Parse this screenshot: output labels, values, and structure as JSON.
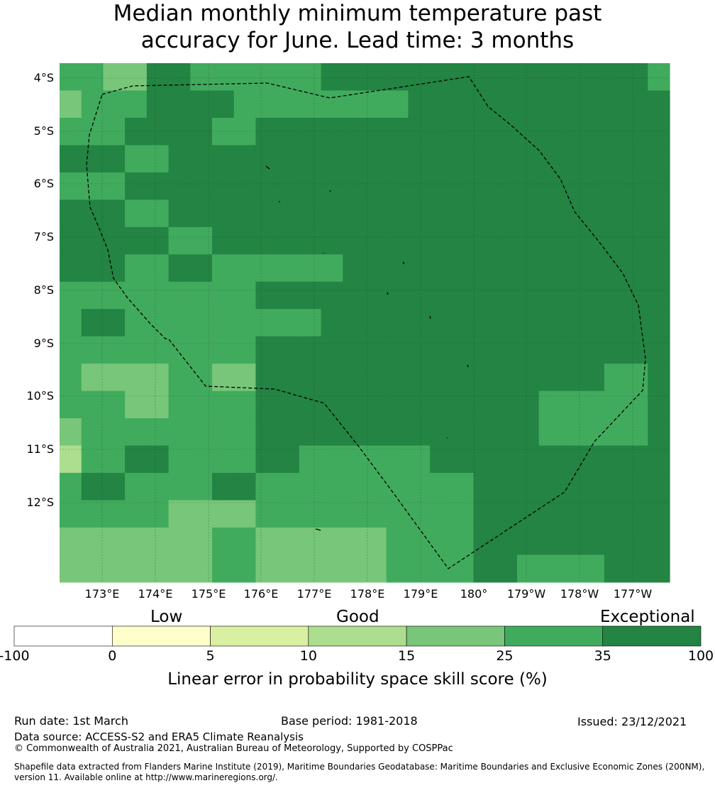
{
  "title": {
    "line1": "Median monthly minimum temperature past",
    "line2": "accuracy for June. Lead time: 3 months"
  },
  "map": {
    "lat_labels": [
      "4°S",
      "5°S",
      "6°S",
      "7°S",
      "8°S",
      "9°S",
      "10°S",
      "11°S",
      "12°S"
    ],
    "lon_labels": [
      "173°E",
      "174°E",
      "175°E",
      "176°E",
      "177°E",
      "178°E",
      "179°E",
      "180°",
      "179°W",
      "178°W",
      "177°W"
    ],
    "palette": [
      "#ffffff",
      "#ffffcc",
      "#d9f0a3",
      "#addd8e",
      "#78c679",
      "#41ab5d",
      "#238443"
    ],
    "grid": [
      [
        5,
        5,
        4,
        4,
        6,
        6,
        5,
        5,
        5,
        5,
        5,
        5,
        6,
        6,
        6,
        6,
        6,
        6,
        6,
        6,
        6,
        6,
        6,
        6,
        6,
        6,
        6,
        5
      ],
      [
        4,
        5,
        5,
        5,
        6,
        6,
        6,
        6,
        5,
        5,
        5,
        5,
        5,
        5,
        5,
        5,
        6,
        6,
        6,
        6,
        6,
        6,
        6,
        6,
        6,
        6,
        6,
        6
      ],
      [
        5,
        5,
        5,
        6,
        6,
        6,
        6,
        5,
        5,
        6,
        6,
        6,
        6,
        6,
        6,
        6,
        6,
        6,
        6,
        6,
        6,
        6,
        6,
        6,
        6,
        6,
        6,
        6
      ],
      [
        6,
        6,
        6,
        5,
        5,
        6,
        6,
        6,
        6,
        6,
        6,
        6,
        6,
        6,
        6,
        6,
        6,
        6,
        6,
        6,
        6,
        6,
        6,
        6,
        6,
        6,
        6,
        6
      ],
      [
        5,
        5,
        5,
        6,
        6,
        6,
        6,
        6,
        6,
        6,
        6,
        6,
        6,
        6,
        6,
        6,
        6,
        6,
        6,
        6,
        6,
        6,
        6,
        6,
        6,
        6,
        6,
        6
      ],
      [
        6,
        6,
        6,
        5,
        5,
        6,
        6,
        6,
        6,
        6,
        6,
        6,
        6,
        6,
        6,
        6,
        6,
        6,
        6,
        6,
        6,
        6,
        6,
        6,
        6,
        6,
        6,
        6
      ],
      [
        6,
        6,
        6,
        6,
        6,
        5,
        5,
        6,
        6,
        6,
        6,
        6,
        6,
        6,
        6,
        6,
        6,
        6,
        6,
        6,
        6,
        6,
        6,
        6,
        6,
        6,
        6,
        6
      ],
      [
        6,
        6,
        6,
        5,
        5,
        6,
        6,
        5,
        5,
        5,
        5,
        5,
        5,
        6,
        6,
        6,
        6,
        6,
        6,
        6,
        6,
        6,
        6,
        6,
        6,
        6,
        6,
        6
      ],
      [
        5,
        5,
        5,
        5,
        5,
        5,
        5,
        5,
        5,
        6,
        6,
        6,
        6,
        6,
        6,
        6,
        6,
        6,
        6,
        6,
        6,
        6,
        6,
        6,
        6,
        6,
        6,
        6
      ],
      [
        5,
        6,
        6,
        5,
        5,
        5,
        5,
        5,
        5,
        5,
        5,
        5,
        6,
        6,
        6,
        6,
        6,
        6,
        6,
        6,
        6,
        6,
        6,
        6,
        6,
        6,
        6,
        6
      ],
      [
        5,
        5,
        5,
        5,
        5,
        5,
        5,
        5,
        5,
        6,
        6,
        6,
        6,
        6,
        6,
        6,
        6,
        6,
        6,
        6,
        6,
        6,
        6,
        6,
        6,
        6,
        6,
        6
      ],
      [
        5,
        4,
        4,
        4,
        4,
        5,
        5,
        4,
        4,
        6,
        6,
        6,
        6,
        6,
        6,
        6,
        6,
        6,
        6,
        6,
        6,
        6,
        6,
        6,
        6,
        5,
        5,
        6
      ],
      [
        5,
        5,
        5,
        4,
        4,
        5,
        5,
        5,
        5,
        6,
        6,
        6,
        6,
        6,
        6,
        6,
        6,
        6,
        6,
        6,
        6,
        6,
        5,
        5,
        5,
        5,
        5,
        6
      ],
      [
        4,
        5,
        5,
        5,
        5,
        5,
        5,
        5,
        5,
        6,
        6,
        6,
        6,
        6,
        6,
        6,
        6,
        6,
        6,
        6,
        6,
        6,
        5,
        5,
        5,
        5,
        5,
        6
      ],
      [
        3,
        5,
        5,
        6,
        6,
        5,
        5,
        5,
        5,
        6,
        6,
        5,
        5,
        5,
        5,
        5,
        5,
        6,
        6,
        6,
        6,
        6,
        6,
        6,
        6,
        6,
        6,
        6
      ],
      [
        5,
        6,
        6,
        5,
        5,
        5,
        5,
        6,
        6,
        5,
        5,
        5,
        5,
        5,
        5,
        5,
        5,
        5,
        5,
        6,
        6,
        6,
        6,
        6,
        6,
        6,
        6,
        6
      ],
      [
        5,
        5,
        5,
        5,
        5,
        4,
        4,
        4,
        4,
        5,
        5,
        5,
        5,
        5,
        5,
        5,
        5,
        5,
        5,
        6,
        6,
        6,
        6,
        6,
        6,
        6,
        6,
        6
      ],
      [
        4,
        4,
        4,
        4,
        4,
        4,
        4,
        5,
        5,
        4,
        4,
        4,
        4,
        4,
        4,
        5,
        5,
        5,
        5,
        6,
        6,
        6,
        6,
        6,
        6,
        6,
        6,
        6
      ],
      [
        4,
        4,
        4,
        4,
        4,
        4,
        4,
        5,
        5,
        4,
        4,
        4,
        4,
        4,
        4,
        5,
        5,
        5,
        5,
        6,
        6,
        5,
        5,
        5,
        5,
        6,
        6,
        6
      ]
    ]
  },
  "legend": {
    "categories": [
      "Low",
      "Good",
      "Exceptional"
    ],
    "colors": [
      "#ffffff",
      "#ffffcc",
      "#d9f0a3",
      "#addd8e",
      "#78c679",
      "#41ab5d",
      "#238443"
    ],
    "ticks": [
      "-100",
      "0",
      "5",
      "10",
      "15",
      "25",
      "35",
      "100"
    ],
    "title": "Linear error in probability space skill score (%)"
  },
  "footer": {
    "run_date": "Run date: 1st March",
    "base_period": "Base period: 1981-2018",
    "issued": "Issued: 23/12/2021",
    "data_source": "Data source: ACCESS-S2 and ERA5 Climate Reanalysis",
    "copyright": "© Commonwealth of Australia 2021, Australian Bureau of Meteorology, Supported by COSPPac",
    "shapefile_line1": "Shapefile data extracted from Flanders Marine Institute (2019), Maritime Boundaries Geodatabase: Maritime Boundaries and Exclusive Economic Zones (200NM),",
    "shapefile_line2": "version 11. Available online at http://www.marineregions.org/."
  }
}
